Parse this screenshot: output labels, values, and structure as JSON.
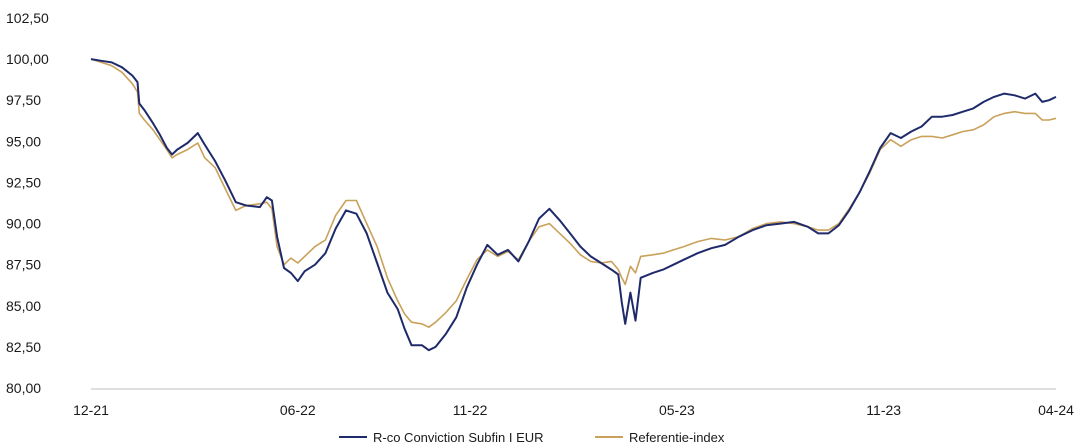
{
  "chart_data": {
    "type": "line",
    "title": "",
    "xlabel": "",
    "ylabel": "",
    "ylim": [
      80,
      102.5
    ],
    "y_ticks": [
      "80,00",
      "82,50",
      "85,00",
      "87,50",
      "90,00",
      "92,50",
      "95,00",
      "97,50",
      "100,00",
      "102,50"
    ],
    "x_ticks": [
      "12-21",
      "06-22",
      "11-22",
      "05-23",
      "11-23",
      "04-24"
    ],
    "x_tick_positions": [
      0,
      6,
      11,
      17,
      23,
      28
    ],
    "x_range": [
      0,
      28
    ],
    "grid": false,
    "legend_position": "bottom",
    "series": [
      {
        "name": "R-co Conviction Subfin I EUR",
        "color": "#1f2a6b",
        "points": [
          [
            0,
            100.0
          ],
          [
            0.3,
            99.9
          ],
          [
            0.6,
            99.8
          ],
          [
            0.9,
            99.5
          ],
          [
            1.2,
            99.0
          ],
          [
            1.35,
            98.6
          ],
          [
            1.4,
            97.3
          ],
          [
            1.55,
            96.9
          ],
          [
            1.8,
            96.1
          ],
          [
            2.0,
            95.4
          ],
          [
            2.2,
            94.6
          ],
          [
            2.35,
            94.2
          ],
          [
            2.5,
            94.5
          ],
          [
            2.8,
            94.9
          ],
          [
            3.1,
            95.5
          ],
          [
            3.3,
            94.8
          ],
          [
            3.6,
            93.8
          ],
          [
            3.9,
            92.6
          ],
          [
            4.2,
            91.3
          ],
          [
            4.5,
            91.1
          ],
          [
            4.9,
            91.0
          ],
          [
            5.1,
            91.6
          ],
          [
            5.25,
            91.4
          ],
          [
            5.4,
            89.2
          ],
          [
            5.6,
            87.3
          ],
          [
            5.8,
            87.0
          ],
          [
            6.0,
            86.5
          ],
          [
            6.2,
            87.1
          ],
          [
            6.5,
            87.5
          ],
          [
            6.8,
            88.2
          ],
          [
            7.1,
            89.7
          ],
          [
            7.4,
            90.8
          ],
          [
            7.7,
            90.6
          ],
          [
            8.0,
            89.4
          ],
          [
            8.3,
            87.6
          ],
          [
            8.6,
            85.8
          ],
          [
            8.9,
            84.8
          ],
          [
            9.1,
            83.6
          ],
          [
            9.3,
            82.6
          ],
          [
            9.6,
            82.6
          ],
          [
            9.8,
            82.3
          ],
          [
            10.0,
            82.5
          ],
          [
            10.3,
            83.3
          ],
          [
            10.6,
            84.3
          ],
          [
            10.9,
            86.1
          ],
          [
            11.2,
            87.5
          ],
          [
            11.5,
            88.7
          ],
          [
            11.8,
            88.1
          ],
          [
            12.1,
            88.4
          ],
          [
            12.4,
            87.7
          ],
          [
            12.7,
            88.9
          ],
          [
            13.0,
            90.3
          ],
          [
            13.3,
            90.9
          ],
          [
            13.6,
            90.2
          ],
          [
            13.9,
            89.4
          ],
          [
            14.2,
            88.6
          ],
          [
            14.5,
            88.0
          ],
          [
            14.8,
            87.6
          ],
          [
            15.1,
            87.2
          ],
          [
            15.3,
            86.9
          ],
          [
            15.4,
            85.2
          ],
          [
            15.5,
            83.9
          ],
          [
            15.65,
            85.8
          ],
          [
            15.8,
            84.1
          ],
          [
            15.95,
            86.7
          ],
          [
            16.3,
            87.0
          ],
          [
            16.6,
            87.2
          ],
          [
            16.9,
            87.5
          ],
          [
            17.2,
            87.8
          ],
          [
            17.6,
            88.2
          ],
          [
            18.0,
            88.5
          ],
          [
            18.4,
            88.7
          ],
          [
            18.8,
            89.2
          ],
          [
            19.2,
            89.6
          ],
          [
            19.6,
            89.9
          ],
          [
            20.0,
            90.0
          ],
          [
            20.4,
            90.1
          ],
          [
            20.8,
            89.8
          ],
          [
            21.1,
            89.4
          ],
          [
            21.4,
            89.4
          ],
          [
            21.7,
            89.9
          ],
          [
            22.0,
            90.8
          ],
          [
            22.3,
            91.9
          ],
          [
            22.6,
            93.2
          ],
          [
            22.9,
            94.6
          ],
          [
            23.2,
            95.5
          ],
          [
            23.5,
            95.2
          ],
          [
            23.8,
            95.6
          ],
          [
            24.1,
            95.9
          ],
          [
            24.4,
            96.5
          ],
          [
            24.7,
            96.5
          ],
          [
            25.0,
            96.6
          ],
          [
            25.3,
            96.8
          ],
          [
            25.6,
            97.0
          ],
          [
            25.9,
            97.4
          ],
          [
            26.2,
            97.7
          ],
          [
            26.5,
            97.9
          ],
          [
            26.8,
            97.8
          ],
          [
            27.1,
            97.6
          ],
          [
            27.4,
            97.9
          ],
          [
            27.6,
            97.4
          ],
          [
            27.8,
            97.5
          ],
          [
            28.0,
            97.7
          ]
        ]
      },
      {
        "name": "Referentie-index",
        "color": "#c9a15a",
        "points": [
          [
            0,
            100.0
          ],
          [
            0.3,
            99.8
          ],
          [
            0.6,
            99.6
          ],
          [
            0.9,
            99.2
          ],
          [
            1.2,
            98.5
          ],
          [
            1.35,
            98.0
          ],
          [
            1.4,
            96.7
          ],
          [
            1.55,
            96.3
          ],
          [
            1.8,
            95.7
          ],
          [
            2.0,
            95.1
          ],
          [
            2.2,
            94.5
          ],
          [
            2.35,
            94.0
          ],
          [
            2.5,
            94.2
          ],
          [
            2.8,
            94.5
          ],
          [
            3.1,
            94.9
          ],
          [
            3.3,
            94.0
          ],
          [
            3.6,
            93.4
          ],
          [
            3.9,
            92.1
          ],
          [
            4.2,
            90.8
          ],
          [
            4.5,
            91.1
          ],
          [
            4.9,
            91.2
          ],
          [
            5.1,
            91.3
          ],
          [
            5.25,
            90.9
          ],
          [
            5.4,
            88.6
          ],
          [
            5.6,
            87.5
          ],
          [
            5.8,
            87.9
          ],
          [
            6.0,
            87.6
          ],
          [
            6.2,
            88.0
          ],
          [
            6.5,
            88.6
          ],
          [
            6.8,
            89.0
          ],
          [
            7.1,
            90.5
          ],
          [
            7.4,
            91.4
          ],
          [
            7.7,
            91.4
          ],
          [
            8.0,
            90.0
          ],
          [
            8.3,
            88.6
          ],
          [
            8.6,
            86.7
          ],
          [
            8.9,
            85.3
          ],
          [
            9.1,
            84.5
          ],
          [
            9.3,
            84.0
          ],
          [
            9.6,
            83.9
          ],
          [
            9.8,
            83.7
          ],
          [
            10.0,
            84.0
          ],
          [
            10.3,
            84.6
          ],
          [
            10.6,
            85.3
          ],
          [
            10.9,
            86.6
          ],
          [
            11.2,
            87.8
          ],
          [
            11.5,
            88.4
          ],
          [
            11.8,
            88.0
          ],
          [
            12.1,
            88.3
          ],
          [
            12.4,
            87.8
          ],
          [
            12.7,
            88.9
          ],
          [
            13.0,
            89.8
          ],
          [
            13.3,
            90.0
          ],
          [
            13.6,
            89.4
          ],
          [
            13.9,
            88.8
          ],
          [
            14.2,
            88.1
          ],
          [
            14.5,
            87.7
          ],
          [
            14.8,
            87.6
          ],
          [
            15.1,
            87.7
          ],
          [
            15.3,
            87.2
          ],
          [
            15.4,
            86.7
          ],
          [
            15.5,
            86.3
          ],
          [
            15.65,
            87.4
          ],
          [
            15.8,
            87.0
          ],
          [
            15.95,
            88.0
          ],
          [
            16.3,
            88.1
          ],
          [
            16.6,
            88.2
          ],
          [
            16.9,
            88.4
          ],
          [
            17.2,
            88.6
          ],
          [
            17.6,
            88.9
          ],
          [
            18.0,
            89.1
          ],
          [
            18.4,
            89.0
          ],
          [
            18.8,
            89.2
          ],
          [
            19.2,
            89.7
          ],
          [
            19.6,
            90.0
          ],
          [
            20.0,
            90.1
          ],
          [
            20.4,
            90.0
          ],
          [
            20.8,
            89.8
          ],
          [
            21.1,
            89.6
          ],
          [
            21.4,
            89.6
          ],
          [
            21.7,
            90.0
          ],
          [
            22.0,
            90.9
          ],
          [
            22.3,
            91.9
          ],
          [
            22.6,
            93.1
          ],
          [
            22.9,
            94.5
          ],
          [
            23.2,
            95.1
          ],
          [
            23.5,
            94.7
          ],
          [
            23.8,
            95.1
          ],
          [
            24.1,
            95.3
          ],
          [
            24.4,
            95.3
          ],
          [
            24.7,
            95.2
          ],
          [
            25.0,
            95.4
          ],
          [
            25.3,
            95.6
          ],
          [
            25.6,
            95.7
          ],
          [
            25.9,
            96.0
          ],
          [
            26.2,
            96.5
          ],
          [
            26.5,
            96.7
          ],
          [
            26.8,
            96.8
          ],
          [
            27.1,
            96.7
          ],
          [
            27.4,
            96.7
          ],
          [
            27.6,
            96.3
          ],
          [
            27.8,
            96.3
          ],
          [
            28.0,
            96.4
          ]
        ]
      }
    ]
  }
}
